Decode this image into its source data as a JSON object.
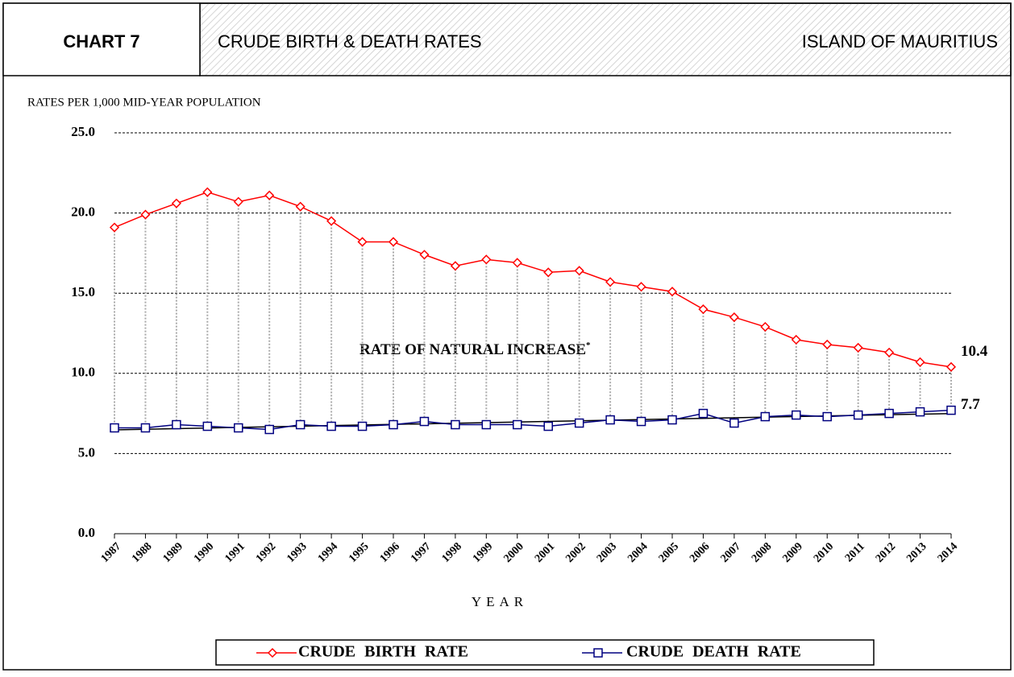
{
  "chart_data": {
    "type": "line",
    "chart_label": "CHART 7",
    "title": "CRUDE BIRTH & DEATH RATES",
    "subtitle": "ISLAND OF MAURITIUS",
    "y_label": "RATES PER 1,000 MID-YEAR POPULATION",
    "x_label": "YEAR",
    "annotation": "RATE OF NATURAL INCREASE",
    "annotation_mark": "*",
    "categories": [
      "1987",
      "1988",
      "1989",
      "1990",
      "1991",
      "1992",
      "1993",
      "1994",
      "1995",
      "1996",
      "1997",
      "1998",
      "1999",
      "2000",
      "2001",
      "2002",
      "2003",
      "2004",
      "2005",
      "2006",
      "2007",
      "2008",
      "2009",
      "2010",
      "2011",
      "2012",
      "2013",
      "2014"
    ],
    "series": [
      {
        "name": "CRUDE BIRTH RATE",
        "color": "#ff0000",
        "marker": "diamond",
        "label_last": true,
        "values": [
          19.1,
          19.9,
          20.6,
          21.3,
          20.7,
          21.1,
          20.4,
          19.5,
          18.2,
          18.2,
          17.4,
          16.7,
          17.1,
          16.9,
          16.3,
          16.4,
          15.7,
          15.4,
          15.1,
          14.0,
          13.5,
          12.9,
          12.1,
          11.8,
          11.6,
          11.3,
          10.7,
          10.4
        ]
      },
      {
        "name": "CRUDE DEATH RATE",
        "color": "#000080",
        "marker": "square",
        "label_last": true,
        "trendline": true,
        "values": [
          6.6,
          6.6,
          6.8,
          6.7,
          6.6,
          6.5,
          6.8,
          6.7,
          6.7,
          6.8,
          7.0,
          6.8,
          6.8,
          6.8,
          6.7,
          6.9,
          7.1,
          7.0,
          7.1,
          7.5,
          6.9,
          7.3,
          7.4,
          7.3,
          7.4,
          7.5,
          7.6,
          7.7
        ]
      }
    ],
    "ylim": [
      0,
      25
    ],
    "yticks": [
      {
        "value": 0,
        "label": "0.0"
      },
      {
        "value": 5,
        "label": "5.0"
      },
      {
        "value": 10,
        "label": "10.0"
      },
      {
        "value": 15,
        "label": "15.0"
      },
      {
        "value": 20,
        "label": "20.0"
      },
      {
        "value": 25,
        "label": "25.0"
      }
    ],
    "grid": true,
    "drop_lines": true,
    "legend": "bottom"
  }
}
